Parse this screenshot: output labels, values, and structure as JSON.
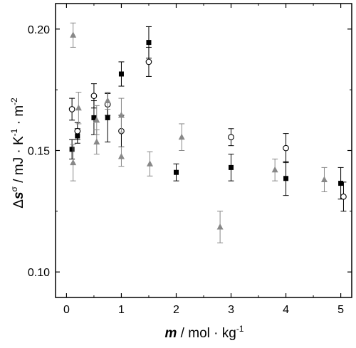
{
  "chart_data": {
    "type": "scatter",
    "x_ticks": [
      "0",
      "1",
      "2",
      "3",
      "4",
      "5"
    ],
    "y_ticks": [
      "0.10",
      "0.15",
      "0.20"
    ],
    "xlim": [
      -0.2,
      5.2
    ],
    "ylim": [
      0.0895,
      0.2105
    ],
    "ylabel": {
      "delta": "Δ",
      "sym": "s",
      "sup": "σ",
      "unit_a": " / mJ · K",
      "exp_a": "-1",
      "unit_b": " · m",
      "exp_b": "-2"
    },
    "xlabel": {
      "sym": "m",
      "unit_a": " / mol · kg",
      "exp_a": "-1"
    },
    "grid": false,
    "legend": "none",
    "series": [
      {
        "marker": "square-filled",
        "color": "#000000",
        "points": [
          {
            "x": 0.1,
            "y": 0.1505,
            "err": 0.004
          },
          {
            "x": 0.2,
            "y": 0.156,
            "err": 0.003
          },
          {
            "x": 0.5,
            "y": 0.1635,
            "err": 0.007
          },
          {
            "x": 0.75,
            "y": 0.1635,
            "err": 0.01
          },
          {
            "x": 1.0,
            "y": 0.1815,
            "err": 0.005
          },
          {
            "x": 1.5,
            "y": 0.1945,
            "err": 0.0065
          },
          {
            "x": 2.0,
            "y": 0.141,
            "err": 0.0035
          },
          {
            "x": 3.0,
            "y": 0.143,
            "err": 0.0055
          },
          {
            "x": 4.0,
            "y": 0.1385,
            "err": 0.007
          },
          {
            "x": 5.0,
            "y": 0.1365,
            "err": 0.0065
          }
        ]
      },
      {
        "marker": "circle-open",
        "color": "#000000",
        "points": [
          {
            "x": 0.1,
            "y": 0.167,
            "err": 0.0045
          },
          {
            "x": 0.2,
            "y": 0.158,
            "err": 0.0035
          },
          {
            "x": 0.5,
            "y": 0.1725,
            "err": 0.005
          },
          {
            "x": 0.75,
            "y": 0.169,
            "err": 0.0045
          },
          {
            "x": 1.0,
            "y": 0.158,
            "err": 0.0065
          },
          {
            "x": 1.5,
            "y": 0.1865,
            "err": 0.006
          },
          {
            "x": 3.0,
            "y": 0.1555,
            "err": 0.0035
          },
          {
            "x": 4.0,
            "y": 0.151,
            "err": 0.006
          },
          {
            "x": 5.05,
            "y": 0.131,
            "err": 0.006
          }
        ]
      },
      {
        "marker": "triangle-filled",
        "color": "#888888",
        "points": [
          {
            "x": 0.12,
            "y": 0.1975,
            "err": 0.005
          },
          {
            "x": 0.12,
            "y": 0.145,
            "err": 0.0075
          },
          {
            "x": 0.22,
            "y": 0.1675,
            "err": 0.0065
          },
          {
            "x": 0.55,
            "y": 0.1625,
            "err": 0.006
          },
          {
            "x": 0.55,
            "y": 0.1535,
            "err": 0.005
          },
          {
            "x": 0.75,
            "y": 0.1705,
            "err": 0.0035
          },
          {
            "x": 1.0,
            "y": 0.1645,
            "err": 0.007
          },
          {
            "x": 1.0,
            "y": 0.1475,
            "err": 0.004
          },
          {
            "x": 1.52,
            "y": 0.1445,
            "err": 0.005
          },
          {
            "x": 2.1,
            "y": 0.1555,
            "err": 0.0055
          },
          {
            "x": 2.8,
            "y": 0.1185,
            "err": 0.0065
          },
          {
            "x": 3.8,
            "y": 0.142,
            "err": 0.0045
          },
          {
            "x": 4.7,
            "y": 0.138,
            "err": 0.005
          }
        ]
      }
    ]
  }
}
